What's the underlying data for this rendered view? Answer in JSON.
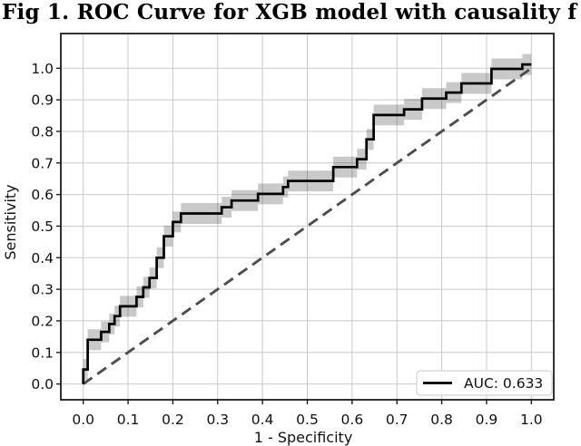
{
  "title": "Fig 1. ROC Curve for XGB model with causality f",
  "chart_data": {
    "type": "line",
    "subtype": "roc-step-curve",
    "title": "Fig 1. ROC Curve for XGB model with causality f",
    "xlabel": "1 - Specificity",
    "ylabel": "Sensitivity",
    "xlim": [
      -0.05,
      1.05
    ],
    "ylim": [
      -0.05,
      1.11
    ],
    "grid": true,
    "x_tick_labels": [
      "0.0",
      "0.1",
      "0.2",
      "0.3",
      "0.4",
      "0.5",
      "0.6",
      "0.7",
      "0.8",
      "0.9",
      "1.0"
    ],
    "y_tick_labels": [
      "0.0",
      "0.1",
      "0.2",
      "0.3",
      "0.4",
      "0.5",
      "0.6",
      "0.7",
      "0.8",
      "0.9",
      "1.0"
    ],
    "legend": {
      "label": "AUC: 0.633",
      "position": "lower right"
    },
    "auc": 0.633,
    "colors": {
      "curve": "#000000",
      "diagonal": "#4d4d4d",
      "band": "rgba(0,0,0,0.21)",
      "grid": "#c9c9c9",
      "spine": "#1c1c1c"
    },
    "series": [
      {
        "name": "ROC curve (AUC: 0.633)",
        "style": "step",
        "color": "#000000",
        "points": [
          [
            0.0,
            0.0
          ],
          [
            0.0,
            0.046
          ],
          [
            0.01,
            0.046
          ],
          [
            0.01,
            0.14
          ],
          [
            0.04,
            0.14
          ],
          [
            0.04,
            0.165
          ],
          [
            0.058,
            0.165
          ],
          [
            0.058,
            0.19
          ],
          [
            0.07,
            0.19
          ],
          [
            0.07,
            0.215
          ],
          [
            0.082,
            0.215
          ],
          [
            0.082,
            0.246
          ],
          [
            0.119,
            0.246
          ],
          [
            0.119,
            0.276
          ],
          [
            0.134,
            0.276
          ],
          [
            0.134,
            0.306
          ],
          [
            0.148,
            0.306
          ],
          [
            0.148,
            0.336
          ],
          [
            0.164,
            0.336
          ],
          [
            0.164,
            0.4
          ],
          [
            0.18,
            0.4
          ],
          [
            0.18,
            0.468
          ],
          [
            0.2,
            0.468
          ],
          [
            0.2,
            0.513
          ],
          [
            0.218,
            0.513
          ],
          [
            0.218,
            0.54
          ],
          [
            0.309,
            0.54
          ],
          [
            0.309,
            0.56
          ],
          [
            0.331,
            0.56
          ],
          [
            0.331,
            0.581
          ],
          [
            0.39,
            0.581
          ],
          [
            0.39,
            0.602
          ],
          [
            0.446,
            0.602
          ],
          [
            0.446,
            0.624
          ],
          [
            0.457,
            0.624
          ],
          [
            0.457,
            0.643
          ],
          [
            0.558,
            0.643
          ],
          [
            0.558,
            0.687
          ],
          [
            0.611,
            0.687
          ],
          [
            0.611,
            0.712
          ],
          [
            0.632,
            0.712
          ],
          [
            0.632,
            0.775
          ],
          [
            0.648,
            0.775
          ],
          [
            0.648,
            0.852
          ],
          [
            0.716,
            0.852
          ],
          [
            0.716,
            0.87
          ],
          [
            0.756,
            0.87
          ],
          [
            0.756,
            0.904
          ],
          [
            0.81,
            0.904
          ],
          [
            0.81,
            0.923
          ],
          [
            0.844,
            0.923
          ],
          [
            0.844,
            0.952
          ],
          [
            0.911,
            0.952
          ],
          [
            0.911,
            0.998
          ],
          [
            0.98,
            0.998
          ],
          [
            0.98,
            1.012
          ],
          [
            1.0,
            1.012
          ]
        ]
      },
      {
        "name": "chance diagonal",
        "style": "dashed",
        "color": "#4d4d4d",
        "points": [
          [
            0,
            0
          ],
          [
            1,
            1
          ]
        ]
      },
      {
        "name": "bootstrap confidence band",
        "style": "band",
        "follows": "ROC curve (AUC: 0.633)",
        "halfwidth": 0.033
      }
    ]
  }
}
